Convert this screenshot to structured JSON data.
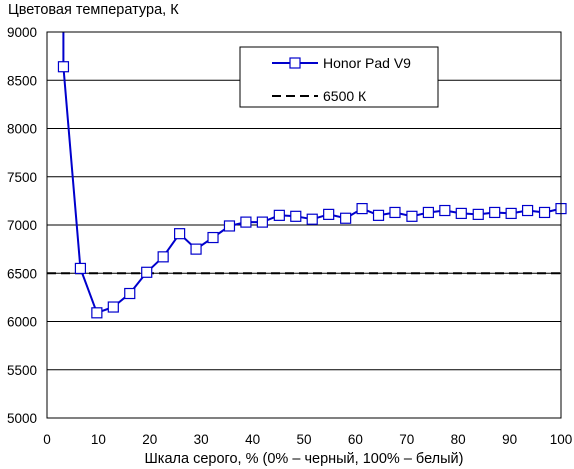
{
  "chart_data": {
    "type": "line",
    "title": "Цветовая температура, К",
    "xlabel": "Шкала серого, % (0% – черный, 100% – белый)",
    "ylabel": "",
    "xlim": [
      0,
      100
    ],
    "ylim": [
      5000,
      9000
    ],
    "x_ticks": [
      "0",
      "10",
      "20",
      "30",
      "40",
      "50",
      "60",
      "70",
      "80",
      "90",
      "100"
    ],
    "y_ticks": [
      "5000",
      "5500",
      "6000",
      "6500",
      "7000",
      "7500",
      "8000",
      "8500",
      "9000"
    ],
    "grid": "horizontal",
    "legend_position": "top-right",
    "series": [
      {
        "name": "Honor Pad V9",
        "color": "#0000cc",
        "marker": "open-square",
        "x": [
          3.2,
          6.5,
          9.7,
          12.9,
          16.1,
          19.4,
          22.6,
          25.8,
          29.0,
          32.3,
          35.5,
          38.7,
          41.9,
          45.2,
          48.4,
          51.6,
          54.8,
          58.1,
          61.3,
          64.5,
          67.7,
          71.0,
          74.2,
          77.4,
          80.6,
          83.9,
          87.1,
          90.3,
          93.5,
          96.8,
          100
        ],
        "y": [
          8640,
          6550,
          6090,
          6150,
          6290,
          6510,
          6670,
          6910,
          6750,
          6870,
          6990,
          7030,
          7030,
          7100,
          7090,
          7060,
          7110,
          7070,
          7170,
          7100,
          7130,
          7090,
          7130,
          7150,
          7120,
          7110,
          7130,
          7120,
          7150,
          7130,
          7170
        ],
        "line_extends_above_top_from_x": 3.2
      },
      {
        "name": "6500 К",
        "color": "#000000",
        "style": "dashed",
        "y_constant": 6500
      }
    ]
  }
}
